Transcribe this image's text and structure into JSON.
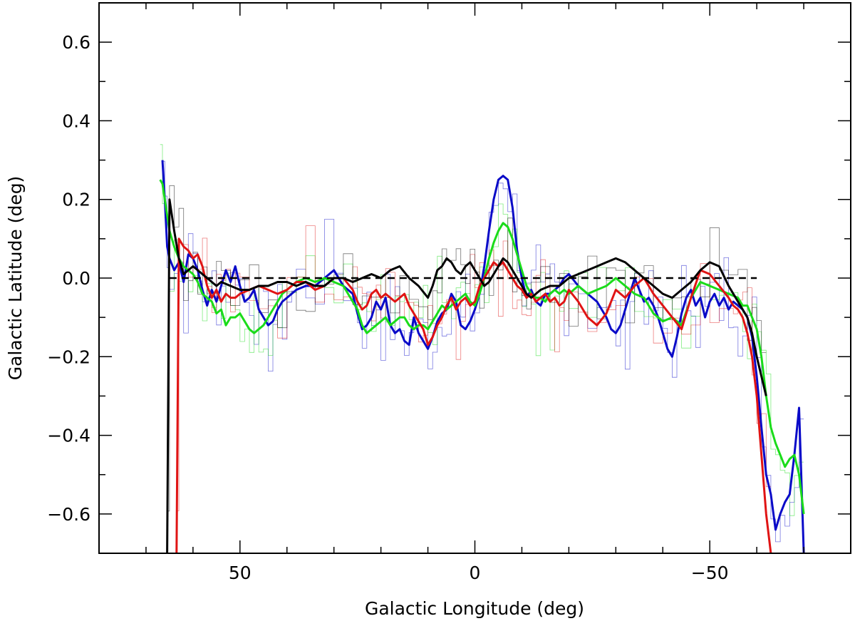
{
  "chart_data": {
    "type": "line",
    "xlabel": "Galactic Longitude (deg)",
    "ylabel": "Galactic Latitude (deg)",
    "xlim": [
      80,
      -80
    ],
    "ylim": [
      -0.7,
      0.7
    ],
    "x_ticks": [
      50,
      0,
      -50
    ],
    "x_tick_labels": [
      "50",
      "0",
      "−50"
    ],
    "y_ticks": [
      0.6,
      0.4,
      0.2,
      0.0,
      -0.2,
      -0.4,
      -0.6
    ],
    "y_tick_labels": [
      "0.6",
      "0.4",
      "0.2",
      "0.0",
      "−0.2",
      "−0.4",
      "−0.6"
    ],
    "grid": false,
    "reference_line": {
      "y": 0.0,
      "style": "dashed",
      "color": "#000000"
    },
    "colors": {
      "blue": "#0a0ac8",
      "green": "#1adc1a",
      "red": "#e01414",
      "black": "#000000"
    },
    "series": [
      {
        "color": "#0a0ac8",
        "style": "thick-line",
        "x": [
          66.5,
          66,
          65.5,
          65,
          64,
          63,
          62,
          61,
          60,
          59,
          58,
          57,
          56,
          55,
          54,
          53,
          52,
          51,
          50,
          49,
          48,
          47,
          46,
          45,
          44,
          43,
          42,
          41,
          40,
          39,
          38,
          36,
          34,
          32,
          30,
          28,
          26,
          25,
          24,
          23,
          22,
          21,
          20,
          19,
          18,
          17,
          16,
          15,
          14,
          13,
          12,
          11,
          10,
          9,
          8,
          7,
          6,
          5,
          4,
          3,
          2,
          1,
          0,
          -1,
          -2,
          -3,
          -4,
          -5,
          -6,
          -7,
          -8,
          -9,
          -10,
          -11,
          -12,
          -13,
          -14,
          -15,
          -16,
          -17,
          -18,
          -19,
          -20,
          -22,
          -24,
          -26,
          -28,
          -29,
          -30,
          -31,
          -32,
          -33,
          -34,
          -35,
          -36,
          -37,
          -38,
          -39,
          -40,
          -41,
          -42,
          -43,
          -44,
          -45,
          -46,
          -47,
          -48,
          -49,
          -50,
          -51,
          -52,
          -53,
          -54,
          -55,
          -56,
          -57,
          -58,
          -59,
          -60,
          -61,
          -62,
          -63,
          -64,
          -65,
          -66,
          -67,
          -68,
          -69,
          -70
        ],
        "y": [
          0.3,
          0.2,
          0.08,
          0.05,
          0.02,
          0.04,
          -0.01,
          0.06,
          0.05,
          0.02,
          -0.03,
          -0.07,
          -0.03,
          -0.06,
          -0.02,
          0.02,
          -0.01,
          0.03,
          -0.02,
          -0.06,
          -0.05,
          -0.03,
          -0.08,
          -0.1,
          -0.12,
          -0.11,
          -0.08,
          -0.06,
          -0.05,
          -0.04,
          -0.03,
          -0.02,
          -0.02,
          0.0,
          0.02,
          -0.02,
          -0.04,
          -0.09,
          -0.13,
          -0.12,
          -0.1,
          -0.06,
          -0.08,
          -0.05,
          -0.12,
          -0.14,
          -0.13,
          -0.16,
          -0.17,
          -0.1,
          -0.14,
          -0.16,
          -0.18,
          -0.15,
          -0.11,
          -0.09,
          -0.08,
          -0.04,
          -0.06,
          -0.12,
          -0.13,
          -0.11,
          -0.08,
          -0.04,
          0.03,
          0.12,
          0.2,
          0.25,
          0.26,
          0.25,
          0.18,
          0.07,
          0.0,
          -0.05,
          -0.03,
          -0.06,
          -0.07,
          -0.04,
          -0.04,
          -0.03,
          -0.02,
          0.0,
          0.01,
          -0.02,
          -0.04,
          -0.06,
          -0.1,
          -0.13,
          -0.14,
          -0.12,
          -0.08,
          -0.04,
          0.0,
          -0.03,
          -0.06,
          -0.05,
          -0.07,
          -0.1,
          -0.14,
          -0.18,
          -0.2,
          -0.15,
          -0.09,
          -0.05,
          -0.03,
          -0.07,
          -0.05,
          -0.1,
          -0.06,
          -0.04,
          -0.07,
          -0.05,
          -0.08,
          -0.06,
          -0.07,
          -0.08,
          -0.1,
          -0.15,
          -0.25,
          -0.38,
          -0.5,
          -0.55,
          -0.64,
          -0.6,
          -0.57,
          -0.55,
          -0.45,
          -0.33,
          -0.7
        ]
      },
      {
        "color": "#1adc1a",
        "style": "thick-line",
        "x": [
          67,
          66.5,
          66,
          65,
          64,
          63,
          62,
          61,
          60,
          59,
          58,
          57,
          56,
          55,
          54,
          53,
          52,
          51,
          50,
          49,
          48,
          47,
          46,
          45,
          44,
          43,
          42,
          41,
          40,
          39,
          38,
          36,
          34,
          32,
          30,
          28,
          26,
          25,
          24,
          23,
          22,
          21,
          20,
          19,
          18,
          17,
          16,
          15,
          14,
          13,
          12,
          11,
          10,
          9,
          8,
          7,
          6,
          5,
          4,
          3,
          2,
          1,
          0,
          -1,
          -2,
          -3,
          -4,
          -5,
          -6,
          -7,
          -8,
          -9,
          -10,
          -11,
          -12,
          -13,
          -14,
          -15,
          -16,
          -17,
          -18,
          -19,
          -20,
          -22,
          -24,
          -26,
          -28,
          -30,
          -32,
          -34,
          -36,
          -38,
          -40,
          -42,
          -44,
          -46,
          -48,
          -50,
          -52,
          -54,
          -56,
          -57,
          -58,
          -59,
          -60,
          -61,
          -62,
          -63,
          -64,
          -65,
          -66,
          -67,
          -68,
          -69,
          -70
        ],
        "y": [
          0.25,
          0.24,
          0.2,
          0.12,
          0.08,
          0.05,
          0.03,
          0.02,
          0.01,
          -0.01,
          -0.04,
          -0.05,
          -0.06,
          -0.09,
          -0.08,
          -0.12,
          -0.1,
          -0.1,
          -0.09,
          -0.11,
          -0.13,
          -0.14,
          -0.13,
          -0.12,
          -0.1,
          -0.08,
          -0.06,
          -0.04,
          -0.03,
          -0.02,
          -0.01,
          0.0,
          -0.01,
          0.0,
          -0.01,
          -0.02,
          -0.06,
          -0.08,
          -0.12,
          -0.14,
          -0.13,
          -0.12,
          -0.11,
          -0.1,
          -0.12,
          -0.11,
          -0.1,
          -0.1,
          -0.12,
          -0.13,
          -0.12,
          -0.12,
          -0.13,
          -0.11,
          -0.09,
          -0.07,
          -0.08,
          -0.07,
          -0.06,
          -0.05,
          -0.04,
          -0.06,
          -0.07,
          -0.04,
          0.0,
          0.05,
          0.09,
          0.12,
          0.14,
          0.13,
          0.1,
          0.06,
          0.02,
          -0.02,
          -0.04,
          -0.05,
          -0.05,
          -0.06,
          -0.04,
          -0.03,
          -0.04,
          -0.03,
          -0.04,
          -0.02,
          -0.04,
          -0.03,
          -0.02,
          0.0,
          -0.02,
          -0.04,
          -0.05,
          -0.09,
          -0.11,
          -0.1,
          -0.12,
          -0.05,
          -0.01,
          -0.02,
          -0.03,
          -0.04,
          -0.05,
          -0.07,
          -0.07,
          -0.1,
          -0.13,
          -0.2,
          -0.3,
          -0.38,
          -0.42,
          -0.45,
          -0.48,
          -0.46,
          -0.45,
          -0.5,
          -0.6
        ]
      },
      {
        "color": "#e01414",
        "style": "thick-line",
        "x": [
          63.5,
          63,
          62,
          61,
          60,
          59,
          58,
          57,
          56,
          55,
          54,
          53,
          52,
          51,
          50,
          48,
          46,
          44,
          42,
          40,
          38,
          36,
          34,
          32,
          30,
          28,
          26,
          25,
          24,
          23,
          22,
          21,
          20,
          19,
          18,
          17,
          16,
          15,
          14,
          13,
          12,
          11,
          10,
          9,
          8,
          7,
          6,
          5,
          4,
          3,
          2,
          1,
          0,
          -1,
          -2,
          -3,
          -4,
          -5,
          -6,
          -7,
          -8,
          -9,
          -10,
          -11,
          -12,
          -13,
          -14,
          -15,
          -16,
          -17,
          -18,
          -19,
          -20,
          -22,
          -24,
          -26,
          -28,
          -30,
          -32,
          -34,
          -36,
          -38,
          -40,
          -42,
          -44,
          -46,
          -48,
          -50,
          -52,
          -54,
          -55,
          -56,
          -57,
          -58,
          -59,
          -60,
          -61,
          -62,
          -63
        ],
        "y": [
          -0.7,
          0.1,
          0.08,
          0.07,
          0.05,
          0.06,
          0.03,
          -0.02,
          -0.05,
          -0.03,
          -0.06,
          -0.04,
          -0.05,
          -0.05,
          -0.04,
          -0.03,
          -0.02,
          -0.03,
          -0.04,
          -0.03,
          -0.01,
          -0.01,
          -0.03,
          -0.02,
          0.0,
          0.0,
          -0.03,
          -0.06,
          -0.08,
          -0.07,
          -0.04,
          -0.03,
          -0.05,
          -0.04,
          -0.05,
          -0.06,
          -0.05,
          -0.04,
          -0.07,
          -0.09,
          -0.11,
          -0.13,
          -0.17,
          -0.15,
          -0.12,
          -0.1,
          -0.07,
          -0.05,
          -0.08,
          -0.06,
          -0.05,
          -0.07,
          -0.06,
          -0.02,
          0.0,
          0.02,
          0.04,
          0.03,
          0.04,
          0.02,
          0.0,
          -0.02,
          -0.03,
          -0.05,
          -0.04,
          -0.06,
          -0.05,
          -0.04,
          -0.06,
          -0.05,
          -0.07,
          -0.06,
          -0.03,
          -0.06,
          -0.1,
          -0.12,
          -0.09,
          -0.03,
          -0.05,
          -0.02,
          0.0,
          -0.04,
          -0.07,
          -0.1,
          -0.13,
          -0.05,
          0.02,
          0.01,
          -0.02,
          -0.05,
          -0.07,
          -0.08,
          -0.1,
          -0.14,
          -0.2,
          -0.3,
          -0.45,
          -0.6,
          -0.7
        ]
      },
      {
        "color": "#000000",
        "style": "thick-line",
        "x": [
          65.5,
          65,
          64,
          63,
          62,
          61,
          60,
          59,
          58,
          57,
          56,
          55,
          54,
          52,
          50,
          48,
          46,
          44,
          42,
          40,
          38,
          36,
          34,
          32,
          30,
          28,
          26,
          24,
          22,
          20,
          18,
          16,
          14,
          12,
          10,
          9,
          8,
          7,
          6,
          5,
          4,
          3,
          2,
          1,
          0,
          -1,
          -2,
          -3,
          -4,
          -5,
          -6,
          -7,
          -8,
          -9,
          -10,
          -11,
          -12,
          -14,
          -16,
          -18,
          -20,
          -22,
          -24,
          -26,
          -28,
          -30,
          -32,
          -34,
          -36,
          -38,
          -40,
          -42,
          -44,
          -46,
          -48,
          -50,
          -52,
          -54,
          -56,
          -58,
          -59,
          -60,
          -61,
          -62
        ],
        "y": [
          -0.7,
          0.2,
          0.12,
          0.05,
          0.01,
          0.02,
          0.03,
          0.02,
          0.01,
          0.0,
          -0.01,
          -0.02,
          -0.01,
          -0.02,
          -0.03,
          -0.03,
          -0.02,
          -0.02,
          -0.01,
          -0.01,
          -0.02,
          -0.01,
          -0.02,
          -0.02,
          0.0,
          0.0,
          -0.01,
          0.0,
          0.01,
          0.0,
          0.02,
          0.03,
          0.0,
          -0.02,
          -0.05,
          -0.02,
          0.02,
          0.03,
          0.05,
          0.04,
          0.02,
          0.01,
          0.03,
          0.04,
          0.02,
          0.0,
          -0.02,
          -0.01,
          0.01,
          0.03,
          0.05,
          0.04,
          0.02,
          0.0,
          -0.02,
          -0.04,
          -0.05,
          -0.03,
          -0.02,
          -0.02,
          0.0,
          0.01,
          0.02,
          0.03,
          0.04,
          0.05,
          0.04,
          0.02,
          0.0,
          -0.02,
          -0.04,
          -0.05,
          -0.03,
          -0.01,
          0.02,
          0.04,
          0.03,
          -0.02,
          -0.06,
          -0.1,
          -0.14,
          -0.2,
          -0.25,
          -0.3
        ]
      }
    ]
  }
}
